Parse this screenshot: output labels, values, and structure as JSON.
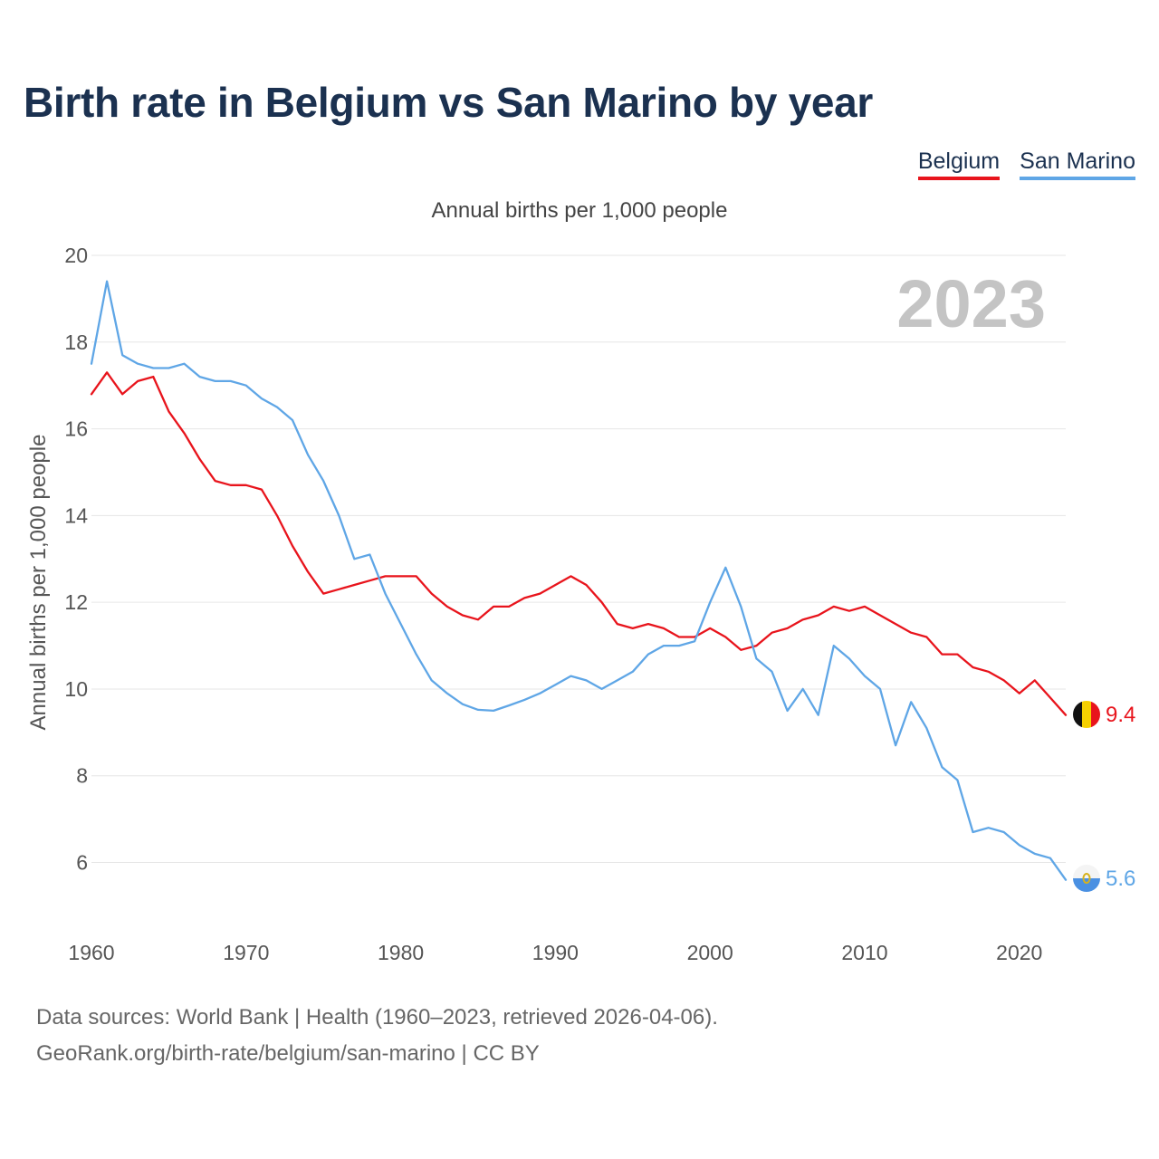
{
  "title": "Birth rate in Belgium vs San Marino by year",
  "legend": [
    {
      "name": "Belgium",
      "color": "#e8141c"
    },
    {
      "name": "San Marino",
      "color": "#5fa6e6"
    }
  ],
  "footer": {
    "line1": "Data sources: World Bank | Health (1960–2023, retrieved 2026-04-06).",
    "line2": "GeoRank.org/birth-rate/belgium/san-marino | CC BY"
  },
  "chart_data": {
    "type": "line",
    "title": "Birth rate in Belgium vs San Marino by year",
    "subtitle": "Annual births per 1,000 people",
    "xlabel": "",
    "ylabel": "Annual births per 1,000 people",
    "year_label": "2023",
    "xlim": [
      1960,
      2023
    ],
    "ylim": [
      4.8,
      20
    ],
    "yticks": [
      6,
      8,
      10,
      12,
      14,
      16,
      18,
      20
    ],
    "xticks": [
      1960,
      1970,
      1980,
      1990,
      2000,
      2010,
      2020
    ],
    "grid": true,
    "legend_position": "top-right",
    "x": [
      1960,
      1961,
      1962,
      1963,
      1964,
      1965,
      1966,
      1967,
      1968,
      1969,
      1970,
      1971,
      1972,
      1973,
      1974,
      1975,
      1976,
      1977,
      1978,
      1979,
      1980,
      1981,
      1982,
      1983,
      1984,
      1985,
      1986,
      1987,
      1988,
      1989,
      1990,
      1991,
      1992,
      1993,
      1994,
      1995,
      1996,
      1997,
      1998,
      1999,
      2000,
      2001,
      2002,
      2003,
      2004,
      2005,
      2006,
      2007,
      2008,
      2009,
      2010,
      2011,
      2012,
      2013,
      2014,
      2015,
      2016,
      2017,
      2018,
      2019,
      2020,
      2021,
      2022,
      2023
    ],
    "series": [
      {
        "name": "Belgium",
        "color": "#e8141c",
        "end_label": "9.4",
        "values": [
          16.8,
          17.3,
          16.8,
          17.1,
          17.2,
          16.4,
          15.9,
          15.3,
          14.8,
          14.7,
          14.7,
          14.6,
          14.0,
          13.3,
          12.7,
          12.2,
          12.3,
          12.4,
          12.5,
          12.6,
          12.6,
          12.6,
          12.2,
          11.9,
          11.7,
          11.6,
          11.9,
          11.9,
          12.1,
          12.2,
          12.4,
          12.6,
          12.4,
          12.0,
          11.5,
          11.4,
          11.5,
          11.4,
          11.2,
          11.2,
          11.4,
          11.2,
          10.9,
          11.0,
          11.3,
          11.4,
          11.6,
          11.7,
          11.9,
          11.8,
          11.9,
          11.7,
          11.5,
          11.3,
          11.2,
          10.8,
          10.8,
          10.5,
          10.4,
          10.2,
          9.9,
          10.2,
          9.8,
          9.4
        ]
      },
      {
        "name": "San Marino",
        "color": "#5fa6e6",
        "end_label": "5.6",
        "values": [
          17.5,
          19.4,
          17.7,
          17.5,
          17.4,
          17.4,
          17.5,
          17.2,
          17.1,
          17.1,
          17.0,
          16.7,
          16.5,
          16.2,
          15.4,
          14.8,
          14.0,
          13.0,
          13.1,
          12.2,
          11.5,
          10.8,
          10.2,
          9.9,
          9.65,
          9.52,
          9.5,
          9.62,
          9.75,
          9.9,
          10.1,
          10.3,
          10.2,
          10.0,
          10.2,
          10.4,
          10.8,
          11.0,
          11.0,
          11.1,
          12.0,
          12.8,
          11.9,
          10.7,
          10.4,
          9.5,
          10.0,
          9.4,
          11.0,
          10.7,
          10.3,
          10.0,
          8.7,
          9.7,
          9.1,
          8.2,
          7.9,
          6.7,
          6.8,
          6.7,
          6.4,
          6.2,
          6.1,
          5.6
        ]
      }
    ]
  }
}
